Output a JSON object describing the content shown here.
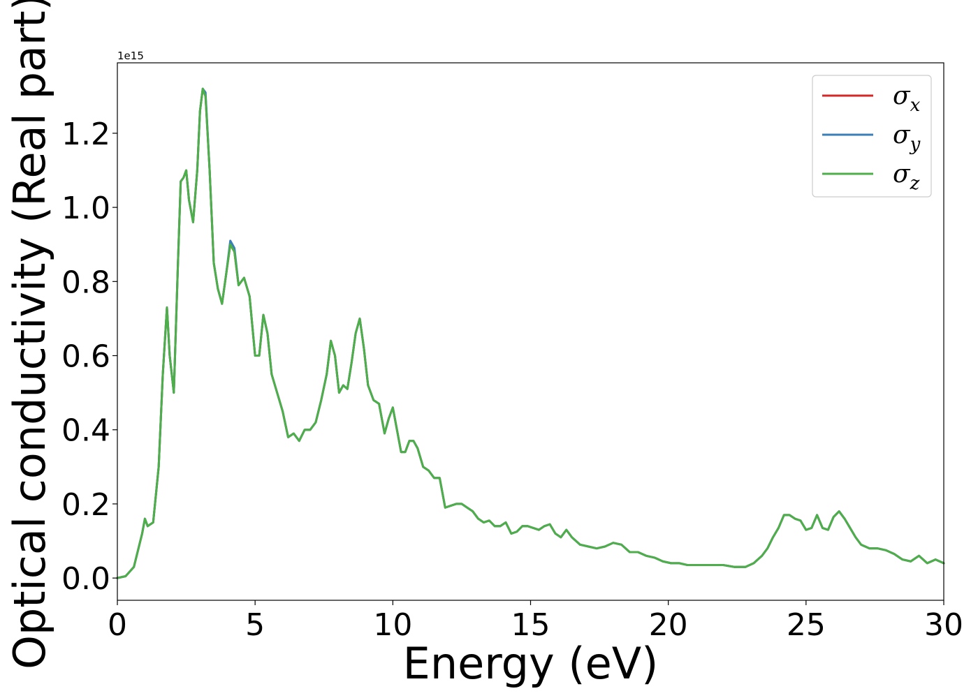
{
  "chart_data": {
    "type": "line",
    "xlabel": "Energy (eV)",
    "ylabel": "Optical conductivity (Real part)",
    "y_offset_label": "1e15",
    "xlim": [
      0,
      30
    ],
    "ylim": [
      -0.06,
      1.39
    ],
    "x_ticks": [
      0,
      5,
      10,
      15,
      20,
      25,
      30
    ],
    "x_tick_labels": [
      "0",
      "5",
      "10",
      "15",
      "20",
      "25",
      "30"
    ],
    "y_ticks": [
      0.0,
      0.2,
      0.4,
      0.6,
      0.8,
      1.0,
      1.2
    ],
    "y_tick_labels": [
      "0.0",
      "0.2",
      "0.4",
      "0.6",
      "0.8",
      "1.0",
      "1.2"
    ],
    "grid": false,
    "legend_position": "top-right",
    "series": [
      {
        "name": "σx",
        "symbol": "σ",
        "subscript": "x",
        "color": "#d62728",
        "x": [
          0,
          0.3,
          0.6,
          0.9,
          1.0,
          1.1,
          1.3,
          1.5,
          1.65,
          1.8,
          1.9,
          2.05,
          2.2,
          2.3,
          2.4,
          2.5,
          2.6,
          2.75,
          2.9,
          3.0,
          3.1,
          3.2,
          3.35,
          3.5,
          3.65,
          3.8,
          3.95,
          4.1,
          4.25,
          4.4,
          4.6,
          4.8,
          5.0,
          5.15,
          5.3,
          5.45,
          5.6,
          5.8,
          6.0,
          6.2,
          6.4,
          6.6,
          6.8,
          7.0,
          7.2,
          7.4,
          7.6,
          7.75,
          7.9,
          8.05,
          8.2,
          8.35,
          8.5,
          8.65,
          8.8,
          8.95,
          9.1,
          9.3,
          9.5,
          9.7,
          9.85,
          10.0,
          10.15,
          10.3,
          10.45,
          10.6,
          10.75,
          10.9,
          11.1,
          11.3,
          11.5,
          11.7,
          11.9,
          12.1,
          12.3,
          12.5,
          12.7,
          12.9,
          13.1,
          13.3,
          13.5,
          13.7,
          13.9,
          14.1,
          14.3,
          14.5,
          14.7,
          14.9,
          15.1,
          15.3,
          15.5,
          15.7,
          15.9,
          16.1,
          16.3,
          16.5,
          16.8,
          17.1,
          17.4,
          17.7,
          18.0,
          18.3,
          18.6,
          18.9,
          19.2,
          19.5,
          19.8,
          20.1,
          20.4,
          20.7,
          21.0,
          21.3,
          21.6,
          22.0,
          22.4,
          22.8,
          23.1,
          23.4,
          23.6,
          23.8,
          24.0,
          24.2,
          24.4,
          24.6,
          24.8,
          25.0,
          25.2,
          25.4,
          25.6,
          25.8,
          26.0,
          26.2,
          26.4,
          26.6,
          26.8,
          27.0,
          27.3,
          27.6,
          27.9,
          28.2,
          28.5,
          28.8,
          29.1,
          29.4,
          29.7,
          30.0
        ],
        "y": [
          0.0,
          0.005,
          0.03,
          0.12,
          0.16,
          0.14,
          0.15,
          0.3,
          0.55,
          0.73,
          0.6,
          0.5,
          0.85,
          1.07,
          1.08,
          1.1,
          1.02,
          0.96,
          1.1,
          1.26,
          1.32,
          1.3,
          1.1,
          0.85,
          0.78,
          0.74,
          0.82,
          0.9,
          0.88,
          0.79,
          0.81,
          0.76,
          0.6,
          0.6,
          0.71,
          0.66,
          0.55,
          0.5,
          0.45,
          0.38,
          0.39,
          0.37,
          0.4,
          0.4,
          0.42,
          0.48,
          0.55,
          0.64,
          0.6,
          0.5,
          0.52,
          0.51,
          0.58,
          0.66,
          0.7,
          0.62,
          0.52,
          0.48,
          0.47,
          0.39,
          0.43,
          0.46,
          0.4,
          0.34,
          0.34,
          0.37,
          0.37,
          0.35,
          0.3,
          0.29,
          0.27,
          0.27,
          0.19,
          0.195,
          0.2,
          0.2,
          0.19,
          0.18,
          0.16,
          0.15,
          0.155,
          0.14,
          0.14,
          0.15,
          0.12,
          0.125,
          0.14,
          0.14,
          0.135,
          0.13,
          0.14,
          0.145,
          0.12,
          0.11,
          0.13,
          0.11,
          0.09,
          0.085,
          0.08,
          0.085,
          0.095,
          0.09,
          0.07,
          0.07,
          0.06,
          0.055,
          0.045,
          0.04,
          0.04,
          0.035,
          0.035,
          0.035,
          0.035,
          0.035,
          0.03,
          0.03,
          0.04,
          0.06,
          0.08,
          0.11,
          0.135,
          0.17,
          0.17,
          0.16,
          0.155,
          0.13,
          0.135,
          0.17,
          0.135,
          0.13,
          0.165,
          0.18,
          0.16,
          0.135,
          0.11,
          0.09,
          0.08,
          0.08,
          0.075,
          0.065,
          0.05,
          0.045,
          0.06,
          0.04,
          0.05,
          0.04
        ]
      },
      {
        "name": "σy",
        "symbol": "σ",
        "subscript": "y",
        "color": "#3a7fb8",
        "x": [
          0,
          0.3,
          0.6,
          0.9,
          1.0,
          1.1,
          1.3,
          1.5,
          1.65,
          1.8,
          1.9,
          2.05,
          2.2,
          2.3,
          2.4,
          2.5,
          2.6,
          2.75,
          2.9,
          3.0,
          3.1,
          3.2,
          3.35,
          3.5,
          3.65,
          3.8,
          3.95,
          4.1,
          4.25,
          4.4,
          4.6,
          4.8,
          5.0,
          5.15,
          5.3,
          5.45,
          5.6,
          5.8,
          6.0,
          6.2,
          6.4,
          6.6,
          6.8,
          7.0,
          7.2,
          7.4,
          7.6,
          7.75,
          7.9,
          8.05,
          8.2,
          8.35,
          8.5,
          8.65,
          8.8,
          8.95,
          9.1,
          9.3,
          9.5,
          9.7,
          9.85,
          10.0,
          10.15,
          10.3,
          10.45,
          10.6,
          10.75,
          10.9,
          11.1,
          11.3,
          11.5,
          11.7,
          11.9,
          12.1,
          12.3,
          12.5,
          12.7,
          12.9,
          13.1,
          13.3,
          13.5,
          13.7,
          13.9,
          14.1,
          14.3,
          14.5,
          14.7,
          14.9,
          15.1,
          15.3,
          15.5,
          15.7,
          15.9,
          16.1,
          16.3,
          16.5,
          16.8,
          17.1,
          17.4,
          17.7,
          18.0,
          18.3,
          18.6,
          18.9,
          19.2,
          19.5,
          19.8,
          20.1,
          20.4,
          20.7,
          21.0,
          21.3,
          21.6,
          22.0,
          22.4,
          22.8,
          23.1,
          23.4,
          23.6,
          23.8,
          24.0,
          24.2,
          24.4,
          24.6,
          24.8,
          25.0,
          25.2,
          25.4,
          25.6,
          25.8,
          26.0,
          26.2,
          26.4,
          26.6,
          26.8,
          27.0,
          27.3,
          27.6,
          27.9,
          28.2,
          28.5,
          28.8,
          29.1,
          29.4,
          29.7,
          30.0
        ],
        "y": [
          0.0,
          0.005,
          0.03,
          0.12,
          0.16,
          0.14,
          0.15,
          0.3,
          0.55,
          0.73,
          0.6,
          0.5,
          0.85,
          1.07,
          1.08,
          1.1,
          1.02,
          0.96,
          1.1,
          1.26,
          1.32,
          1.31,
          1.1,
          0.85,
          0.78,
          0.74,
          0.82,
          0.91,
          0.89,
          0.79,
          0.81,
          0.76,
          0.6,
          0.6,
          0.71,
          0.66,
          0.55,
          0.5,
          0.45,
          0.38,
          0.39,
          0.37,
          0.4,
          0.4,
          0.42,
          0.48,
          0.55,
          0.64,
          0.6,
          0.5,
          0.52,
          0.51,
          0.58,
          0.66,
          0.7,
          0.62,
          0.52,
          0.48,
          0.47,
          0.39,
          0.43,
          0.46,
          0.4,
          0.34,
          0.34,
          0.37,
          0.37,
          0.35,
          0.3,
          0.29,
          0.27,
          0.27,
          0.19,
          0.195,
          0.2,
          0.2,
          0.19,
          0.18,
          0.16,
          0.15,
          0.155,
          0.14,
          0.14,
          0.15,
          0.12,
          0.125,
          0.14,
          0.14,
          0.135,
          0.13,
          0.14,
          0.145,
          0.12,
          0.11,
          0.13,
          0.11,
          0.09,
          0.085,
          0.08,
          0.085,
          0.095,
          0.09,
          0.07,
          0.07,
          0.06,
          0.055,
          0.045,
          0.04,
          0.04,
          0.035,
          0.035,
          0.035,
          0.035,
          0.035,
          0.03,
          0.03,
          0.04,
          0.06,
          0.08,
          0.11,
          0.135,
          0.17,
          0.17,
          0.16,
          0.155,
          0.13,
          0.135,
          0.17,
          0.135,
          0.13,
          0.165,
          0.18,
          0.16,
          0.135,
          0.11,
          0.09,
          0.08,
          0.08,
          0.075,
          0.065,
          0.05,
          0.045,
          0.06,
          0.04,
          0.05,
          0.04
        ]
      },
      {
        "name": "σz",
        "symbol": "σ",
        "subscript": "z",
        "color": "#4daf4a",
        "x": [
          0,
          0.3,
          0.6,
          0.9,
          1.0,
          1.1,
          1.3,
          1.5,
          1.65,
          1.8,
          1.9,
          2.05,
          2.2,
          2.3,
          2.4,
          2.5,
          2.6,
          2.75,
          2.9,
          3.0,
          3.1,
          3.2,
          3.35,
          3.5,
          3.65,
          3.8,
          3.95,
          4.1,
          4.25,
          4.4,
          4.6,
          4.8,
          5.0,
          5.15,
          5.3,
          5.45,
          5.6,
          5.8,
          6.0,
          6.2,
          6.4,
          6.6,
          6.8,
          7.0,
          7.2,
          7.4,
          7.6,
          7.75,
          7.9,
          8.05,
          8.2,
          8.35,
          8.5,
          8.65,
          8.8,
          8.95,
          9.1,
          9.3,
          9.5,
          9.7,
          9.85,
          10.0,
          10.15,
          10.3,
          10.45,
          10.6,
          10.75,
          10.9,
          11.1,
          11.3,
          11.5,
          11.7,
          11.9,
          12.1,
          12.3,
          12.5,
          12.7,
          12.9,
          13.1,
          13.3,
          13.5,
          13.7,
          13.9,
          14.1,
          14.3,
          14.5,
          14.7,
          14.9,
          15.1,
          15.3,
          15.5,
          15.7,
          15.9,
          16.1,
          16.3,
          16.5,
          16.8,
          17.1,
          17.4,
          17.7,
          18.0,
          18.3,
          18.6,
          18.9,
          19.2,
          19.5,
          19.8,
          20.1,
          20.4,
          20.7,
          21.0,
          21.3,
          21.6,
          22.0,
          22.4,
          22.8,
          23.1,
          23.4,
          23.6,
          23.8,
          24.0,
          24.2,
          24.4,
          24.6,
          24.8,
          25.0,
          25.2,
          25.4,
          25.6,
          25.8,
          26.0,
          26.2,
          26.4,
          26.6,
          26.8,
          27.0,
          27.3,
          27.6,
          27.9,
          28.2,
          28.5,
          28.8,
          29.1,
          29.4,
          29.7,
          30.0
        ],
        "y": [
          0.0,
          0.005,
          0.03,
          0.12,
          0.16,
          0.14,
          0.15,
          0.3,
          0.55,
          0.73,
          0.6,
          0.5,
          0.85,
          1.07,
          1.08,
          1.1,
          1.02,
          0.96,
          1.1,
          1.26,
          1.32,
          1.3,
          1.1,
          0.85,
          0.78,
          0.74,
          0.82,
          0.9,
          0.88,
          0.79,
          0.81,
          0.76,
          0.6,
          0.6,
          0.71,
          0.66,
          0.55,
          0.5,
          0.45,
          0.38,
          0.39,
          0.37,
          0.4,
          0.4,
          0.42,
          0.48,
          0.55,
          0.64,
          0.6,
          0.5,
          0.52,
          0.51,
          0.58,
          0.66,
          0.7,
          0.62,
          0.52,
          0.48,
          0.47,
          0.39,
          0.43,
          0.46,
          0.4,
          0.34,
          0.34,
          0.37,
          0.37,
          0.35,
          0.3,
          0.29,
          0.27,
          0.27,
          0.19,
          0.195,
          0.2,
          0.2,
          0.19,
          0.18,
          0.16,
          0.15,
          0.155,
          0.14,
          0.14,
          0.15,
          0.12,
          0.125,
          0.14,
          0.14,
          0.135,
          0.13,
          0.14,
          0.145,
          0.12,
          0.11,
          0.13,
          0.11,
          0.09,
          0.085,
          0.08,
          0.085,
          0.095,
          0.09,
          0.07,
          0.07,
          0.06,
          0.055,
          0.045,
          0.04,
          0.04,
          0.035,
          0.035,
          0.035,
          0.035,
          0.035,
          0.03,
          0.03,
          0.04,
          0.06,
          0.08,
          0.11,
          0.135,
          0.17,
          0.17,
          0.16,
          0.155,
          0.13,
          0.135,
          0.17,
          0.135,
          0.13,
          0.165,
          0.18,
          0.16,
          0.135,
          0.11,
          0.09,
          0.08,
          0.08,
          0.075,
          0.065,
          0.05,
          0.045,
          0.06,
          0.04,
          0.05,
          0.04
        ]
      }
    ]
  }
}
